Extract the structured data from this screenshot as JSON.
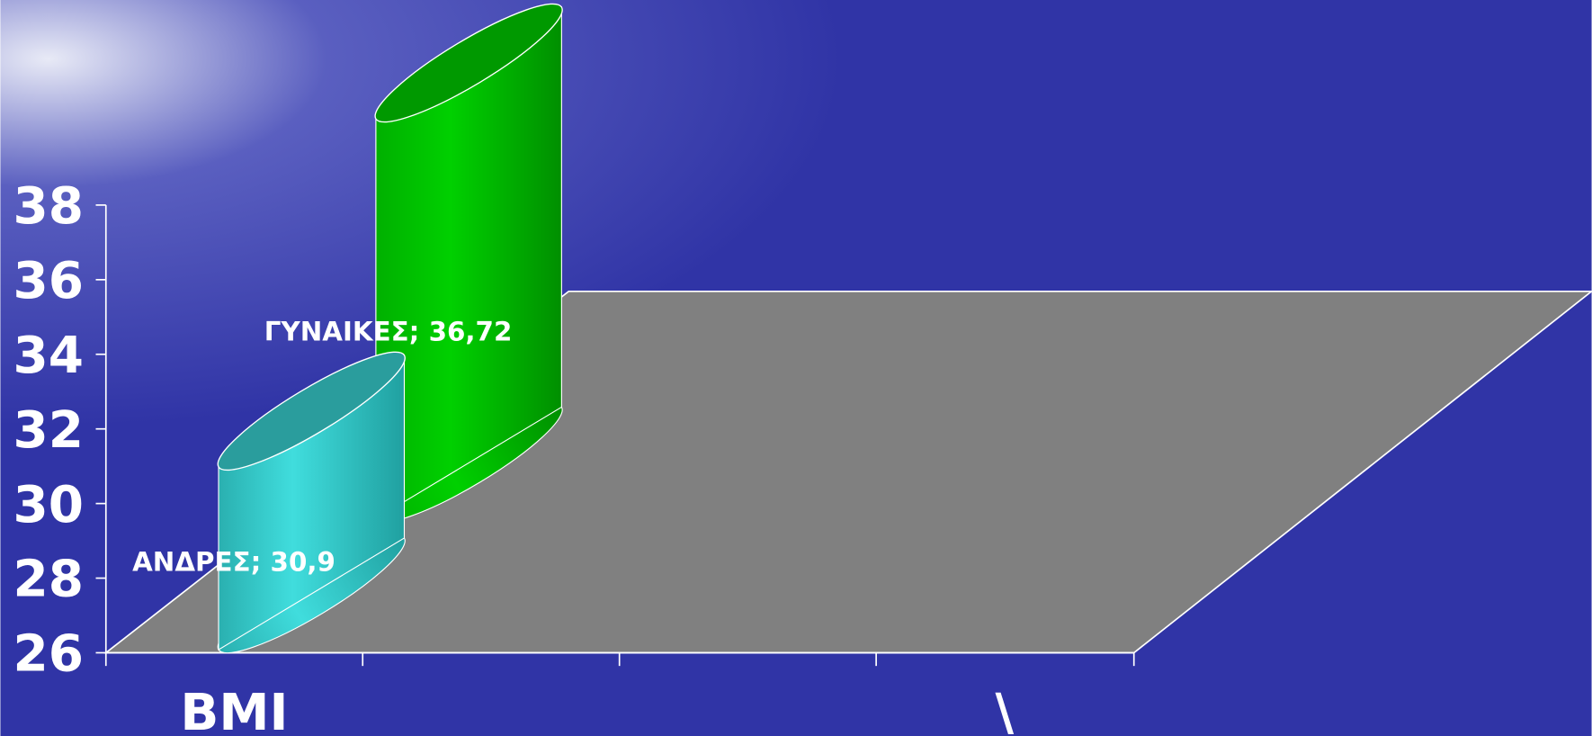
{
  "chart_data": {
    "type": "bar3d",
    "categories": [
      "BMI",
      null,
      null,
      "\\"
    ],
    "series": [
      {
        "color": "#33cccc",
        "values": [
          30.9,
          null,
          null,
          null
        ],
        "value_labels": [
          "ΑΝΔΡΕΣ; 30,9",
          null,
          null,
          null
        ]
      },
      {
        "color": "#00cc00",
        "values": [
          36.72,
          null,
          null,
          null
        ],
        "value_labels": [
          "ΓΥΝΑΙΚΕΣ; 36,72",
          null,
          null,
          null
        ]
      }
    ],
    "ylim": [
      26,
      38
    ],
    "yticks": [
      26,
      28,
      30,
      32,
      34,
      36,
      38
    ]
  }
}
